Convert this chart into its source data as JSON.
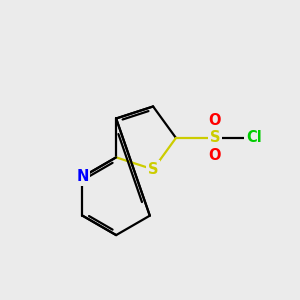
{
  "bg_color": "#ebebeb",
  "bond_color": "#000000",
  "bond_width": 1.6,
  "atom_colors": {
    "N": "#0000ff",
    "S_thio": "#cccc00",
    "S_sulfonyl": "#cccc00",
    "O": "#ff0000",
    "Cl": "#00cc00",
    "C": "#000000"
  },
  "font_size": 10.5,
  "fig_size": [
    3.0,
    3.0
  ],
  "dpi": 100
}
